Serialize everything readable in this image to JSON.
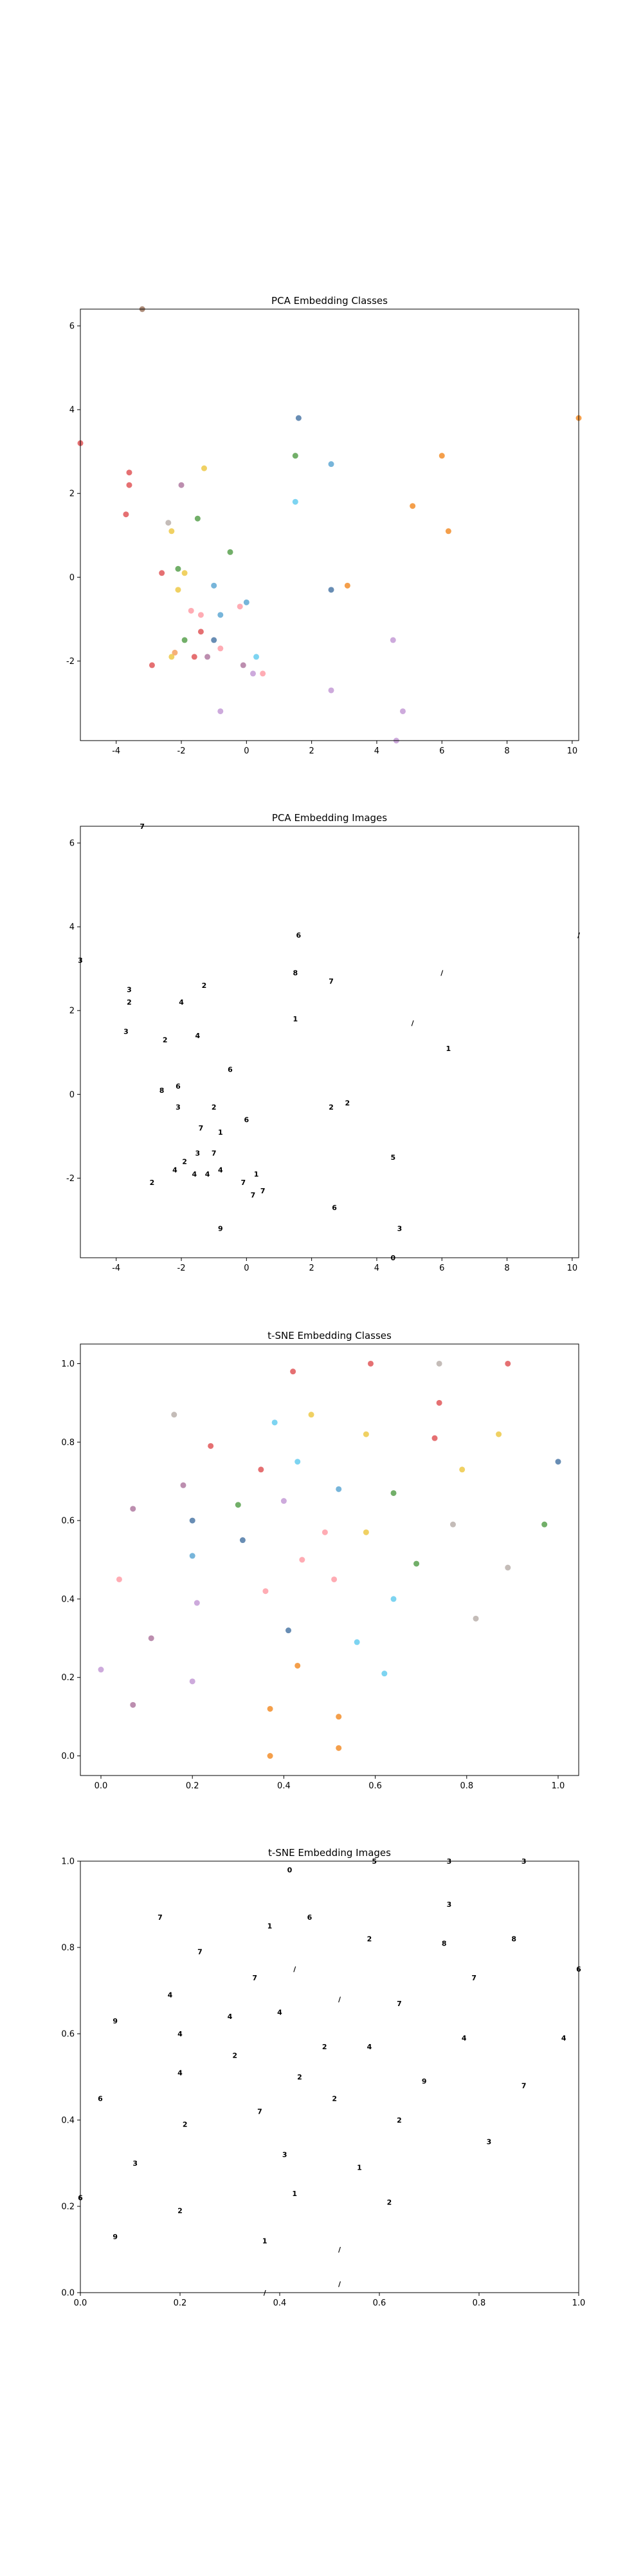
{
  "figure": {
    "colors": {
      "class_palette": [
        "#e15759",
        "#f28e2b",
        "#59a14f",
        "#edc948",
        "#4e79a7",
        "#b07aa1",
        "#ff9da7",
        "#9c755f",
        "#bab0ac",
        "#76b7b2",
        "#5fa8d3",
        "#8fd16a",
        "#c49bd6",
        "#f4a261",
        "#66ccee"
      ]
    }
  },
  "chart_data": [
    {
      "type": "scatter",
      "title": "PCA Embedding Classes",
      "xlabel": "",
      "ylabel": "",
      "xlim": [
        -5.1,
        10.2
      ],
      "ylim": [
        -3.9,
        6.4
      ],
      "xticks": [
        -4,
        -2,
        0,
        2,
        4,
        6,
        8,
        10
      ],
      "yticks": [
        -2,
        0,
        2,
        4,
        6
      ],
      "grid": false,
      "marker": "dot",
      "points": [
        {
          "x": -5.1,
          "y": 3.2,
          "c": 0
        },
        {
          "x": -3.2,
          "y": 6.4,
          "c": 7
        },
        {
          "x": -3.6,
          "y": 2.5,
          "c": 0
        },
        {
          "x": -3.6,
          "y": 2.2,
          "c": 0
        },
        {
          "x": -3.7,
          "y": 1.5,
          "c": 0
        },
        {
          "x": -2.4,
          "y": 1.3,
          "c": 8
        },
        {
          "x": -2.0,
          "y": 2.2,
          "c": 5
        },
        {
          "x": -1.3,
          "y": 2.6,
          "c": 3
        },
        {
          "x": -1.5,
          "y": 1.4,
          "c": 2
        },
        {
          "x": -2.3,
          "y": 1.1,
          "c": 3
        },
        {
          "x": -0.5,
          "y": 0.6,
          "c": 2
        },
        {
          "x": -2.6,
          "y": 0.1,
          "c": 0
        },
        {
          "x": -2.1,
          "y": 0.2,
          "c": 2
        },
        {
          "x": -1.9,
          "y": 0.1,
          "c": 3
        },
        {
          "x": -2.1,
          "y": -0.3,
          "c": 3
        },
        {
          "x": -1.0,
          "y": -0.2,
          "c": 10
        },
        {
          "x": -1.7,
          "y": -0.8,
          "c": 6
        },
        {
          "x": -1.4,
          "y": -0.9,
          "c": 6
        },
        {
          "x": -0.8,
          "y": -0.9,
          "c": 10
        },
        {
          "x": -0.2,
          "y": -0.7,
          "c": 6
        },
        {
          "x": 0.0,
          "y": -0.6,
          "c": 10
        },
        {
          "x": -1.9,
          "y": -1.5,
          "c": 2
        },
        {
          "x": -1.4,
          "y": -1.3,
          "c": 0
        },
        {
          "x": -1.0,
          "y": -1.5,
          "c": 4
        },
        {
          "x": -0.8,
          "y": -1.7,
          "c": 6
        },
        {
          "x": -2.2,
          "y": -1.8,
          "c": 13
        },
        {
          "x": -2.3,
          "y": -1.9,
          "c": 3
        },
        {
          "x": -1.6,
          "y": -1.9,
          "c": 0
        },
        {
          "x": -1.2,
          "y": -1.9,
          "c": 5
        },
        {
          "x": -2.9,
          "y": -2.1,
          "c": 0
        },
        {
          "x": -0.1,
          "y": -2.1,
          "c": 5
        },
        {
          "x": 0.3,
          "y": -1.9,
          "c": 14
        },
        {
          "x": 0.2,
          "y": -2.3,
          "c": 12
        },
        {
          "x": 0.5,
          "y": -2.3,
          "c": 6
        },
        {
          "x": -0.8,
          "y": -3.2,
          "c": 12
        },
        {
          "x": 1.6,
          "y": 3.8,
          "c": 4
        },
        {
          "x": 1.5,
          "y": 2.9,
          "c": 2
        },
        {
          "x": 1.5,
          "y": 1.8,
          "c": 14
        },
        {
          "x": 2.6,
          "y": 2.7,
          "c": 10
        },
        {
          "x": 2.6,
          "y": -0.3,
          "c": 4
        },
        {
          "x": 3.1,
          "y": -0.2,
          "c": 1
        },
        {
          "x": 2.6,
          "y": -2.7,
          "c": 12
        },
        {
          "x": 4.5,
          "y": -1.5,
          "c": 12
        },
        {
          "x": 4.8,
          "y": -3.2,
          "c": 12
        },
        {
          "x": 4.6,
          "y": -3.9,
          "c": 12
        },
        {
          "x": 5.1,
          "y": 1.7,
          "c": 1
        },
        {
          "x": 6.0,
          "y": 2.9,
          "c": 1
        },
        {
          "x": 6.2,
          "y": 1.1,
          "c": 1
        },
        {
          "x": 10.2,
          "y": 3.8,
          "c": 1
        }
      ]
    },
    {
      "type": "scatter",
      "title": "PCA Embedding Images",
      "xlabel": "",
      "ylabel": "",
      "xlim": [
        -5.1,
        10.2
      ],
      "ylim": [
        -3.9,
        6.4
      ],
      "xticks": [
        -4,
        -2,
        0,
        2,
        4,
        6,
        8,
        10
      ],
      "yticks": [
        -2,
        0,
        2,
        4,
        6
      ],
      "grid": false,
      "marker": "image",
      "points": [
        {
          "x": -3.2,
          "y": 6.4,
          "g": "7"
        },
        {
          "x": -5.1,
          "y": 3.2,
          "g": "3"
        },
        {
          "x": -3.6,
          "y": 2.5,
          "g": "3"
        },
        {
          "x": -3.6,
          "y": 2.2,
          "g": "2"
        },
        {
          "x": -3.7,
          "y": 1.5,
          "g": "3"
        },
        {
          "x": -2.5,
          "y": 1.3,
          "g": "2"
        },
        {
          "x": -2.0,
          "y": 2.2,
          "g": "4"
        },
        {
          "x": -1.3,
          "y": 2.6,
          "g": "2"
        },
        {
          "x": -1.5,
          "y": 1.4,
          "g": "4"
        },
        {
          "x": -0.5,
          "y": 0.6,
          "g": "6"
        },
        {
          "x": -2.6,
          "y": 0.1,
          "g": "8"
        },
        {
          "x": -2.1,
          "y": 0.2,
          "g": "6"
        },
        {
          "x": -2.1,
          "y": -0.3,
          "g": "3"
        },
        {
          "x": -1.0,
          "y": -0.3,
          "g": "2"
        },
        {
          "x": 0.0,
          "y": -0.6,
          "g": "6"
        },
        {
          "x": -1.4,
          "y": -0.8,
          "g": "7"
        },
        {
          "x": -0.8,
          "y": -0.9,
          "g": "1"
        },
        {
          "x": -1.5,
          "y": -1.4,
          "g": "3"
        },
        {
          "x": -1.0,
          "y": -1.4,
          "g": "7"
        },
        {
          "x": -1.9,
          "y": -1.6,
          "g": "2"
        },
        {
          "x": -2.2,
          "y": -1.8,
          "g": "4"
        },
        {
          "x": -1.6,
          "y": -1.9,
          "g": "4"
        },
        {
          "x": -1.2,
          "y": -1.9,
          "g": "4"
        },
        {
          "x": -0.8,
          "y": -1.8,
          "g": "4"
        },
        {
          "x": -2.9,
          "y": -2.1,
          "g": "2"
        },
        {
          "x": -0.1,
          "y": -2.1,
          "g": "7"
        },
        {
          "x": 0.3,
          "y": -1.9,
          "g": "1"
        },
        {
          "x": 0.2,
          "y": -2.4,
          "g": "7"
        },
        {
          "x": 0.5,
          "y": -2.3,
          "g": "7"
        },
        {
          "x": -0.8,
          "y": -3.2,
          "g": "9"
        },
        {
          "x": 1.6,
          "y": 3.8,
          "g": "6"
        },
        {
          "x": 1.5,
          "y": 2.9,
          "g": "8"
        },
        {
          "x": 1.5,
          "y": 1.8,
          "g": "1"
        },
        {
          "x": 2.6,
          "y": 2.7,
          "g": "7"
        },
        {
          "x": 2.6,
          "y": -0.3,
          "g": "2"
        },
        {
          "x": 3.1,
          "y": -0.2,
          "g": "2"
        },
        {
          "x": 2.7,
          "y": -2.7,
          "g": "6"
        },
        {
          "x": 4.5,
          "y": -1.5,
          "g": "5"
        },
        {
          "x": 4.7,
          "y": -3.2,
          "g": "3"
        },
        {
          "x": 4.5,
          "y": -3.9,
          "g": "0"
        },
        {
          "x": 5.1,
          "y": 1.7,
          "g": "/"
        },
        {
          "x": 6.0,
          "y": 2.9,
          "g": "/"
        },
        {
          "x": 6.2,
          "y": 1.1,
          "g": "1"
        },
        {
          "x": 10.2,
          "y": 3.8,
          "g": "/"
        }
      ]
    },
    {
      "type": "scatter",
      "title": "t-SNE Embedding Classes",
      "xlabel": "",
      "ylabel": "",
      "xlim": [
        -0.045,
        1.045
      ],
      "ylim": [
        -0.05,
        1.05
      ],
      "xticks": [
        0.0,
        0.2,
        0.4,
        0.6,
        0.8,
        1.0
      ],
      "yticks": [
        0.0,
        0.2,
        0.4,
        0.6,
        0.8,
        1.0
      ],
      "grid": false,
      "marker": "dot",
      "points": [
        {
          "x": 0.42,
          "y": 0.98,
          "c": 0
        },
        {
          "x": 0.59,
          "y": 1.0,
          "c": 0
        },
        {
          "x": 0.74,
          "y": 1.0,
          "c": 8
        },
        {
          "x": 0.89,
          "y": 1.0,
          "c": 0
        },
        {
          "x": 0.74,
          "y": 0.9,
          "c": 0
        },
        {
          "x": 0.16,
          "y": 0.87,
          "c": 8
        },
        {
          "x": 0.46,
          "y": 0.87,
          "c": 3
        },
        {
          "x": 0.38,
          "y": 0.85,
          "c": 14
        },
        {
          "x": 0.24,
          "y": 0.79,
          "c": 0
        },
        {
          "x": 0.73,
          "y": 0.81,
          "c": 0
        },
        {
          "x": 0.87,
          "y": 0.82,
          "c": 3
        },
        {
          "x": 0.58,
          "y": 0.82,
          "c": 3
        },
        {
          "x": 0.43,
          "y": 0.75,
          "c": 14
        },
        {
          "x": 0.35,
          "y": 0.73,
          "c": 0
        },
        {
          "x": 0.79,
          "y": 0.73,
          "c": 3
        },
        {
          "x": 1.0,
          "y": 0.75,
          "c": 4
        },
        {
          "x": 0.18,
          "y": 0.69,
          "c": 5
        },
        {
          "x": 0.52,
          "y": 0.68,
          "c": 10
        },
        {
          "x": 0.64,
          "y": 0.67,
          "c": 2
        },
        {
          "x": 0.07,
          "y": 0.63,
          "c": 5
        },
        {
          "x": 0.3,
          "y": 0.64,
          "c": 2
        },
        {
          "x": 0.4,
          "y": 0.65,
          "c": 12
        },
        {
          "x": 0.2,
          "y": 0.6,
          "c": 4
        },
        {
          "x": 0.49,
          "y": 0.57,
          "c": 6
        },
        {
          "x": 0.58,
          "y": 0.57,
          "c": 3
        },
        {
          "x": 0.77,
          "y": 0.59,
          "c": 8
        },
        {
          "x": 0.97,
          "y": 0.59,
          "c": 2
        },
        {
          "x": 0.31,
          "y": 0.55,
          "c": 4
        },
        {
          "x": 0.2,
          "y": 0.51,
          "c": 10
        },
        {
          "x": 0.44,
          "y": 0.5,
          "c": 6
        },
        {
          "x": 0.69,
          "y": 0.49,
          "c": 2
        },
        {
          "x": 0.89,
          "y": 0.48,
          "c": 8
        },
        {
          "x": 0.04,
          "y": 0.45,
          "c": 6
        },
        {
          "x": 0.51,
          "y": 0.45,
          "c": 6
        },
        {
          "x": 0.36,
          "y": 0.42,
          "c": 6
        },
        {
          "x": 0.64,
          "y": 0.4,
          "c": 14
        },
        {
          "x": 0.21,
          "y": 0.39,
          "c": 12
        },
        {
          "x": 0.82,
          "y": 0.35,
          "c": 8
        },
        {
          "x": 0.41,
          "y": 0.32,
          "c": 4
        },
        {
          "x": 0.11,
          "y": 0.3,
          "c": 5
        },
        {
          "x": 0.56,
          "y": 0.29,
          "c": 14
        },
        {
          "x": 0.0,
          "y": 0.22,
          "c": 12
        },
        {
          "x": 0.43,
          "y": 0.23,
          "c": 1
        },
        {
          "x": 0.62,
          "y": 0.21,
          "c": 14
        },
        {
          "x": 0.2,
          "y": 0.19,
          "c": 12
        },
        {
          "x": 0.07,
          "y": 0.13,
          "c": 5
        },
        {
          "x": 0.37,
          "y": 0.12,
          "c": 1
        },
        {
          "x": 0.52,
          "y": 0.1,
          "c": 1
        },
        {
          "x": 0.52,
          "y": 0.02,
          "c": 1
        },
        {
          "x": 0.37,
          "y": 0.0,
          "c": 1
        }
      ]
    },
    {
      "type": "scatter",
      "title": "t-SNE Embedding Images",
      "xlabel": "",
      "ylabel": "",
      "xlim": [
        0.0,
        1.0
      ],
      "ylim": [
        0.0,
        1.0
      ],
      "xticks": [
        0.0,
        0.2,
        0.4,
        0.6,
        0.8,
        1.0
      ],
      "yticks": [
        0.0,
        0.2,
        0.4,
        0.6,
        0.8,
        1.0
      ],
      "grid": false,
      "marker": "image",
      "points": [
        {
          "x": 0.42,
          "y": 0.98,
          "g": "0"
        },
        {
          "x": 0.59,
          "y": 1.0,
          "g": "5"
        },
        {
          "x": 0.74,
          "y": 1.0,
          "g": "3"
        },
        {
          "x": 0.89,
          "y": 1.0,
          "g": "3"
        },
        {
          "x": 0.74,
          "y": 0.9,
          "g": "3"
        },
        {
          "x": 0.16,
          "y": 0.87,
          "g": "7"
        },
        {
          "x": 0.46,
          "y": 0.87,
          "g": "6"
        },
        {
          "x": 0.38,
          "y": 0.85,
          "g": "1"
        },
        {
          "x": 0.24,
          "y": 0.79,
          "g": "7"
        },
        {
          "x": 0.58,
          "y": 0.82,
          "g": "2"
        },
        {
          "x": 0.73,
          "y": 0.81,
          "g": "8"
        },
        {
          "x": 0.87,
          "y": 0.82,
          "g": "8"
        },
        {
          "x": 0.43,
          "y": 0.75,
          "g": "/"
        },
        {
          "x": 0.35,
          "y": 0.73,
          "g": "7"
        },
        {
          "x": 0.79,
          "y": 0.73,
          "g": "7"
        },
        {
          "x": 1.0,
          "y": 0.75,
          "g": "6"
        },
        {
          "x": 0.18,
          "y": 0.69,
          "g": "4"
        },
        {
          "x": 0.52,
          "y": 0.68,
          "g": "/"
        },
        {
          "x": 0.64,
          "y": 0.67,
          "g": "7"
        },
        {
          "x": 0.07,
          "y": 0.63,
          "g": "9"
        },
        {
          "x": 0.3,
          "y": 0.64,
          "g": "4"
        },
        {
          "x": 0.4,
          "y": 0.65,
          "g": "4"
        },
        {
          "x": 0.2,
          "y": 0.6,
          "g": "4"
        },
        {
          "x": 0.49,
          "y": 0.57,
          "g": "2"
        },
        {
          "x": 0.58,
          "y": 0.57,
          "g": "4"
        },
        {
          "x": 0.77,
          "y": 0.59,
          "g": "4"
        },
        {
          "x": 0.97,
          "y": 0.59,
          "g": "4"
        },
        {
          "x": 0.31,
          "y": 0.55,
          "g": "2"
        },
        {
          "x": 0.2,
          "y": 0.51,
          "g": "4"
        },
        {
          "x": 0.44,
          "y": 0.5,
          "g": "2"
        },
        {
          "x": 0.69,
          "y": 0.49,
          "g": "9"
        },
        {
          "x": 0.89,
          "y": 0.48,
          "g": "7"
        },
        {
          "x": 0.04,
          "y": 0.45,
          "g": "6"
        },
        {
          "x": 0.51,
          "y": 0.45,
          "g": "2"
        },
        {
          "x": 0.36,
          "y": 0.42,
          "g": "7"
        },
        {
          "x": 0.64,
          "y": 0.4,
          "g": "2"
        },
        {
          "x": 0.21,
          "y": 0.39,
          "g": "2"
        },
        {
          "x": 0.82,
          "y": 0.35,
          "g": "3"
        },
        {
          "x": 0.41,
          "y": 0.32,
          "g": "3"
        },
        {
          "x": 0.11,
          "y": 0.3,
          "g": "3"
        },
        {
          "x": 0.56,
          "y": 0.29,
          "g": "1"
        },
        {
          "x": 0.0,
          "y": 0.22,
          "g": "6"
        },
        {
          "x": 0.43,
          "y": 0.23,
          "g": "1"
        },
        {
          "x": 0.62,
          "y": 0.21,
          "g": "2"
        },
        {
          "x": 0.2,
          "y": 0.19,
          "g": "2"
        },
        {
          "x": 0.07,
          "y": 0.13,
          "g": "9"
        },
        {
          "x": 0.37,
          "y": 0.12,
          "g": "1"
        },
        {
          "x": 0.52,
          "y": 0.1,
          "g": "/"
        },
        {
          "x": 0.52,
          "y": 0.02,
          "g": "/"
        },
        {
          "x": 0.37,
          "y": 0.0,
          "g": "/"
        }
      ]
    }
  ]
}
